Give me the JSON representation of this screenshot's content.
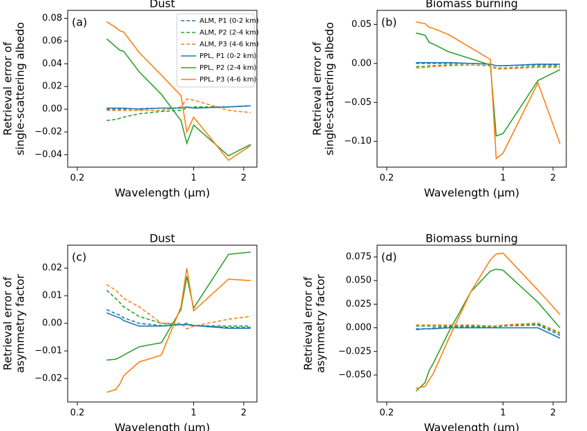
{
  "chart_data": [
    {
      "type": "line",
      "title": "Dust",
      "annotation": "(a)",
      "xlabel": "Wavelength (µm)",
      "ylabel": [
        "Retrieval error of",
        "single-scattering albedo"
      ],
      "xscale": "log",
      "xlim": [
        0.175,
        2.4
      ],
      "xticks": [
        0.2,
        1,
        2
      ],
      "ylim": [
        -0.051,
        0.087
      ],
      "yticks": [
        {
          "value": -0.04,
          "label": "−0.04"
        },
        {
          "value": -0.02,
          "label": "−0.02"
        },
        {
          "value": 0,
          "label": "0.00"
        },
        {
          "value": 0.02,
          "label": "0.02"
        },
        {
          "value": 0.04,
          "label": "0.04"
        },
        {
          "value": 0.06,
          "label": "0.06"
        },
        {
          "value": 0.08,
          "label": "0.08"
        }
      ],
      "legend": "upper right",
      "x": [
        0.3,
        0.34,
        0.36,
        0.38,
        0.47,
        0.64,
        0.84,
        0.91,
        1.0,
        1.62,
        2.2
      ],
      "series": [
        {
          "name": "ALM, P1 (0-2 km)",
          "color": "#1f77b4",
          "linestyle": "--",
          "values": [
            0.0,
            0.0,
            0.0,
            0.0,
            0.0005,
            0.001,
            0.001,
            0.002,
            0.001,
            0.002,
            0.003
          ]
        },
        {
          "name": "ALM, P2 (2-4 km)",
          "color": "#2ca02c",
          "linestyle": "--",
          "values": [
            -0.01,
            -0.009,
            -0.008,
            -0.007,
            -0.004,
            -0.002,
            -0.001,
            0.001,
            0.002,
            0.002,
            0.003
          ]
        },
        {
          "name": "ALM, P3 (4-6 km)",
          "color": "#ff7f0e",
          "linestyle": "--",
          "values": [
            -0.001,
            -0.001,
            -0.001,
            -0.001,
            -0.001,
            -0.001,
            0.002,
            0.009,
            0.008,
            -0.001,
            -0.003
          ]
        },
        {
          "name": "PPL, P1 (0-2 km)",
          "color": "#1f77b4",
          "linestyle": "-",
          "values": [
            0.001,
            0.001,
            0.001,
            0.001,
            0.0,
            0.001,
            0.001,
            0.002,
            0.001,
            0.002,
            0.003
          ]
        },
        {
          "name": "PPL, P2 (2-4 km)",
          "color": "#2ca02c",
          "linestyle": "-",
          "values": [
            0.062,
            0.055,
            0.052,
            0.051,
            0.033,
            0.013,
            -0.01,
            -0.03,
            -0.014,
            -0.041,
            -0.031
          ]
        },
        {
          "name": "PPL, P3 (4-6 km)",
          "color": "#ff7f0e",
          "linestyle": "-",
          "values": [
            0.077,
            0.072,
            0.069,
            0.068,
            0.05,
            0.03,
            0.012,
            -0.02,
            -0.007,
            -0.045,
            -0.032
          ]
        }
      ]
    },
    {
      "type": "line",
      "title": "Biomass burning",
      "annotation": "(b)",
      "xlabel": "Wavelength (µm)",
      "ylabel": [
        "Retrieval error of",
        "single-scattering albedo"
      ],
      "xscale": "log",
      "xlim": [
        0.175,
        2.4
      ],
      "xticks": [
        0.2,
        1,
        2
      ],
      "ylim": [
        -0.133,
        0.068
      ],
      "yticks": [
        {
          "value": -0.1,
          "label": "−0.10"
        },
        {
          "value": -0.05,
          "label": "−0.05"
        },
        {
          "value": 0,
          "label": "0.00"
        },
        {
          "value": 0.05,
          "label": "0.05"
        }
      ],
      "x": [
        0.3,
        0.34,
        0.36,
        0.38,
        0.47,
        0.64,
        0.84,
        0.91,
        1.0,
        1.62,
        2.2
      ],
      "series": [
        {
          "color": "#1f77b4",
          "linestyle": "--",
          "values": [
            0.0,
            0.0,
            0.0,
            0.0,
            0.0,
            0.0,
            -0.001,
            -0.003,
            -0.003,
            -0.002,
            -0.002
          ]
        },
        {
          "color": "#2ca02c",
          "linestyle": "--",
          "values": [
            -0.004,
            -0.004,
            -0.003,
            -0.003,
            -0.002,
            -0.002,
            -0.003,
            -0.006,
            -0.006,
            -0.004,
            -0.004
          ]
        },
        {
          "color": "#ff7f0e",
          "linestyle": "--",
          "values": [
            -0.006,
            -0.005,
            -0.005,
            -0.004,
            -0.003,
            -0.002,
            -0.003,
            -0.007,
            -0.007,
            -0.005,
            -0.005
          ]
        },
        {
          "color": "#1f77b4",
          "linestyle": "-",
          "values": [
            0.001,
            0.001,
            0.001,
            0.001,
            0.001,
            0.0,
            -0.001,
            -0.003,
            -0.003,
            -0.001,
            -0.001
          ]
        },
        {
          "color": "#2ca02c",
          "linestyle": "-",
          "values": [
            0.039,
            0.036,
            0.027,
            0.025,
            0.015,
            0.006,
            -0.002,
            -0.093,
            -0.09,
            -0.022,
            -0.008
          ]
        },
        {
          "color": "#ff7f0e",
          "linestyle": "-",
          "values": [
            0.053,
            0.051,
            0.046,
            0.045,
            0.037,
            0.02,
            0.005,
            -0.122,
            -0.115,
            -0.025,
            -0.103
          ]
        }
      ]
    },
    {
      "type": "line",
      "title": "Dust",
      "annotation": "(c)",
      "xlabel": "Wavelength (µm)",
      "ylabel": [
        "Retrieval error of",
        "asymmetry factor"
      ],
      "xscale": "log",
      "xlim": [
        0.175,
        2.4
      ],
      "xticks": [
        0.2,
        1,
        2
      ],
      "ylim": [
        -0.0285,
        0.0283
      ],
      "yticks": [
        {
          "value": -0.02,
          "label": "−0.02"
        },
        {
          "value": -0.01,
          "label": "−0.01"
        },
        {
          "value": 0,
          "label": "0.00"
        },
        {
          "value": 0.01,
          "label": "0.01"
        },
        {
          "value": 0.02,
          "label": "0.02"
        }
      ],
      "x": [
        0.3,
        0.34,
        0.36,
        0.38,
        0.47,
        0.64,
        0.84,
        0.91,
        1.0,
        1.62,
        2.2
      ],
      "series": [
        {
          "color": "#1f77b4",
          "linestyle": "--",
          "values": [
            0.005,
            0.0035,
            0.003,
            0.002,
            0.0,
            -0.0008,
            -0.0005,
            -0.0005,
            -0.0008,
            -0.0015,
            -0.0015
          ]
        },
        {
          "color": "#2ca02c",
          "linestyle": "--",
          "values": [
            0.012,
            0.009,
            0.0075,
            0.006,
            0.0025,
            0.0,
            -0.0005,
            0.0,
            -0.0008,
            -0.001,
            -0.001
          ]
        },
        {
          "color": "#ff7f0e",
          "linestyle": "--",
          "values": [
            0.014,
            0.012,
            0.0105,
            0.009,
            0.006,
            0.0,
            0.0,
            -0.002,
            -0.001,
            0.0015,
            0.0025
          ]
        },
        {
          "color": "#1f77b4",
          "linestyle": "-",
          "values": [
            0.0038,
            0.0025,
            0.002,
            0.001,
            -0.001,
            -0.001,
            -0.0005,
            -0.0005,
            -0.0008,
            -0.0018,
            -0.0018
          ]
        },
        {
          "color": "#2ca02c",
          "linestyle": "-",
          "values": [
            -0.0133,
            -0.013,
            -0.0123,
            -0.0115,
            -0.0085,
            -0.007,
            0.005,
            0.017,
            0.0055,
            0.025,
            0.0258
          ]
        },
        {
          "color": "#ff7f0e",
          "linestyle": "-",
          "values": [
            -0.025,
            -0.024,
            -0.022,
            -0.019,
            -0.014,
            -0.0115,
            0.006,
            0.02,
            0.0045,
            0.016,
            0.0155
          ]
        }
      ]
    },
    {
      "type": "line",
      "title": "Biomass burning",
      "annotation": "(d)",
      "xlabel": "Wavelength (µm)",
      "ylabel": [
        "Retrieval error of",
        "asymmetry factor"
      ],
      "xscale": "log",
      "xlim": [
        0.175,
        2.4
      ],
      "xticks": [
        0.2,
        1,
        2
      ],
      "ylim": [
        -0.0785,
        0.0874
      ],
      "yticks": [
        {
          "value": -0.05,
          "label": "−0.050"
        },
        {
          "value": -0.025,
          "label": "−0.025"
        },
        {
          "value": 0,
          "label": "0.000"
        },
        {
          "value": 0.025,
          "label": "0.025"
        },
        {
          "value": 0.05,
          "label": "0.050"
        },
        {
          "value": 0.075,
          "label": "0.075"
        }
      ],
      "x": [
        0.3,
        0.34,
        0.36,
        0.38,
        0.47,
        0.64,
        0.84,
        0.91,
        1.0,
        1.62,
        2.2
      ],
      "series": [
        {
          "color": "#1f77b4",
          "linestyle": "--",
          "values": [
            -0.001,
            -0.001,
            -0.001,
            0.0,
            0.001,
            0.001,
            0.001,
            0.001,
            0.002,
            0.003,
            -0.008
          ]
        },
        {
          "color": "#2ca02c",
          "linestyle": "--",
          "values": [
            0.002,
            0.002,
            0.002,
            0.002,
            0.002,
            0.002,
            0.001,
            0.001,
            0.002,
            0.004,
            -0.006
          ]
        },
        {
          "color": "#ff7f0e",
          "linestyle": "--",
          "values": [
            0.003,
            0.003,
            0.003,
            0.003,
            0.003,
            0.003,
            0.002,
            0.002,
            0.003,
            0.005,
            -0.005
          ]
        },
        {
          "color": "#1f77b4",
          "linestyle": "-",
          "values": [
            -0.002,
            -0.001,
            -0.001,
            -0.001,
            0.0,
            0.0,
            0.0,
            0.0,
            0.0,
            0.0,
            -0.011
          ]
        },
        {
          "color": "#2ca02c",
          "linestyle": "-",
          "values": [
            -0.067,
            -0.058,
            -0.045,
            -0.038,
            -0.005,
            0.038,
            0.06,
            0.062,
            0.061,
            0.027,
            0.0
          ]
        },
        {
          "color": "#ff7f0e",
          "linestyle": "-",
          "values": [
            -0.064,
            -0.062,
            -0.055,
            -0.049,
            -0.012,
            0.038,
            0.072,
            0.078,
            0.079,
            0.04,
            0.014
          ]
        }
      ]
    }
  ]
}
